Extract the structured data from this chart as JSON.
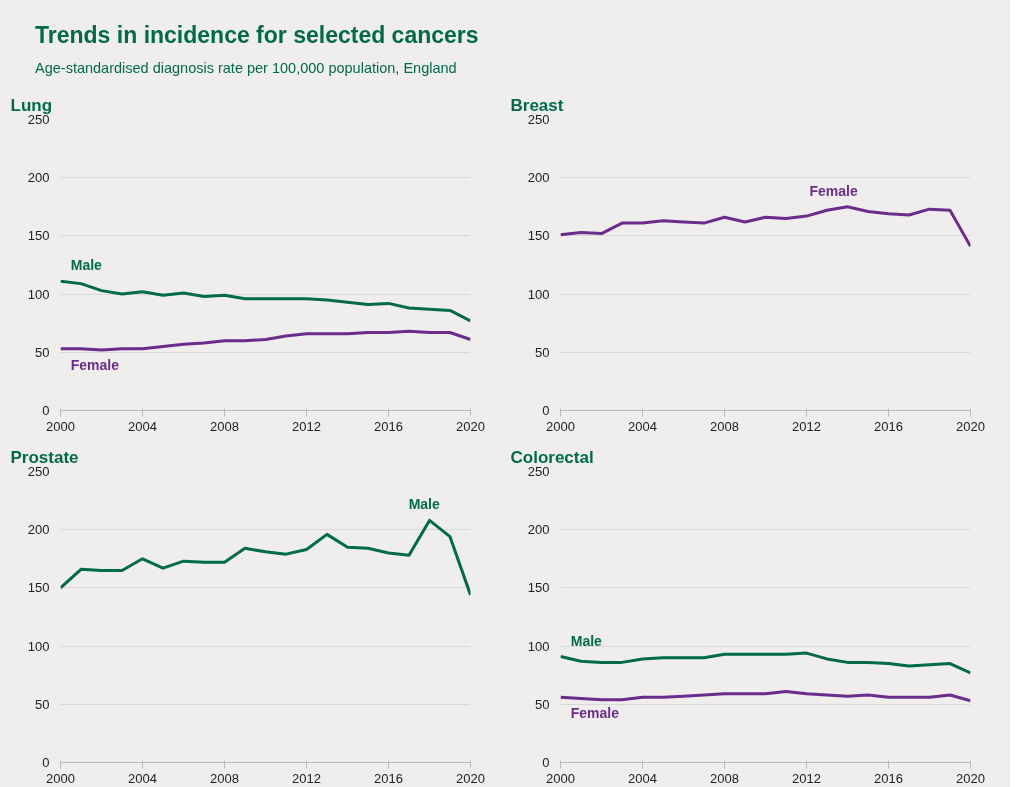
{
  "chart_data": [
    {
      "type": "other",
      "title": "Trends in incidence for selected cancers",
      "subtitle": "Age-standardised diagnosis rate per 100,000 population, England"
    },
    {
      "type": "line",
      "title": "Lung",
      "x": [
        2000,
        2001,
        2002,
        2003,
        2004,
        2005,
        2006,
        2007,
        2008,
        2009,
        2010,
        2011,
        2012,
        2013,
        2014,
        2015,
        2016,
        2017,
        2018,
        2019,
        2020
      ],
      "xlim": [
        2000,
        2020
      ],
      "xticks": [
        2000,
        2004,
        2008,
        2012,
        2016,
        2020
      ],
      "ylim": [
        0,
        250
      ],
      "yticks": [
        0,
        50,
        100,
        150,
        200,
        250
      ],
      "grid": "y",
      "legend": false,
      "series": [
        {
          "name": "Male",
          "color": "#006b4a",
          "values": [
            111,
            109,
            103,
            100,
            102,
            99,
            101,
            98,
            99,
            96,
            96,
            96,
            96,
            95,
            93,
            91,
            92,
            88,
            87,
            86,
            77
          ]
        },
        {
          "name": "Female",
          "color": "#6b2c8c",
          "values": [
            53,
            53,
            52,
            53,
            53,
            55,
            57,
            58,
            60,
            60,
            61,
            64,
            66,
            66,
            66,
            67,
            67,
            68,
            67,
            67,
            61
          ]
        }
      ]
    },
    {
      "type": "line",
      "title": "Breast",
      "x": [
        2000,
        2001,
        2002,
        2003,
        2004,
        2005,
        2006,
        2007,
        2008,
        2009,
        2010,
        2011,
        2012,
        2013,
        2014,
        2015,
        2016,
        2017,
        2018,
        2019,
        2020
      ],
      "xlim": [
        2000,
        2020
      ],
      "xticks": [
        2000,
        2004,
        2008,
        2012,
        2016,
        2020
      ],
      "ylim": [
        0,
        250
      ],
      "yticks": [
        0,
        50,
        100,
        150,
        200,
        250
      ],
      "grid": "y",
      "legend": false,
      "series": [
        {
          "name": "Female",
          "color": "#6b2c8c",
          "values": [
            151,
            153,
            152,
            161,
            161,
            163,
            162,
            161,
            166,
            162,
            166,
            165,
            167,
            172,
            175,
            171,
            169,
            168,
            173,
            172,
            141
          ]
        }
      ]
    },
    {
      "type": "line",
      "title": "Prostate",
      "x": [
        2000,
        2001,
        2002,
        2003,
        2004,
        2005,
        2006,
        2007,
        2008,
        2009,
        2010,
        2011,
        2012,
        2013,
        2014,
        2015,
        2016,
        2017,
        2018,
        2019,
        2020
      ],
      "xlim": [
        2000,
        2020
      ],
      "xticks": [
        2000,
        2004,
        2008,
        2012,
        2016,
        2020
      ],
      "ylim": [
        0,
        250
      ],
      "yticks": [
        0,
        50,
        100,
        150,
        200,
        250
      ],
      "grid": "y",
      "legend": false,
      "series": [
        {
          "name": "Male",
          "color": "#006b4a",
          "values": [
            150,
            166,
            165,
            165,
            175,
            167,
            173,
            172,
            172,
            184,
            181,
            179,
            183,
            196,
            185,
            184,
            180,
            178,
            208,
            194,
            144
          ]
        }
      ]
    },
    {
      "type": "line",
      "title": "Colorectal",
      "x": [
        2000,
        2001,
        2002,
        2003,
        2004,
        2005,
        2006,
        2007,
        2008,
        2009,
        2010,
        2011,
        2012,
        2013,
        2014,
        2015,
        2016,
        2017,
        2018,
        2019,
        2020
      ],
      "xlim": [
        2000,
        2020
      ],
      "xticks": [
        2000,
        2004,
        2008,
        2012,
        2016,
        2020
      ],
      "ylim": [
        0,
        250
      ],
      "yticks": [
        0,
        50,
        100,
        150,
        200,
        250
      ],
      "grid": "y",
      "legend": false,
      "series": [
        {
          "name": "Male",
          "color": "#006b4a",
          "values": [
            91,
            87,
            86,
            86,
            89,
            90,
            90,
            90,
            93,
            93,
            93,
            93,
            94,
            89,
            86,
            86,
            85,
            83,
            84,
            85,
            77
          ]
        },
        {
          "name": "Female",
          "color": "#6b2c8c",
          "values": [
            56,
            55,
            54,
            54,
            56,
            56,
            57,
            58,
            59,
            59,
            59,
            61,
            59,
            58,
            57,
            58,
            56,
            56,
            56,
            58,
            53
          ]
        }
      ]
    }
  ]
}
